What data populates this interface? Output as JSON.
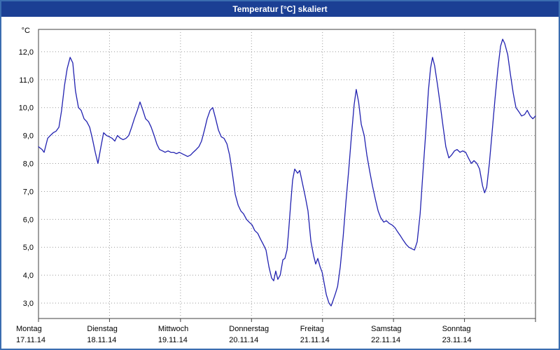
{
  "window": {
    "title": "Temperatur [°C] skaliert"
  },
  "chart_data": {
    "type": "line",
    "title": "Temperatur [°C] skaliert",
    "xlabel": "",
    "ylabel": "°C",
    "ylim": [
      2.45,
      12.8
    ],
    "xlim_hours": [
      0,
      168
    ],
    "grid": true,
    "legend": "none",
    "colors": {
      "line": "#2121b0",
      "grid": "#9a9a9a",
      "axis": "#404040",
      "title_bar": "#1b3f94",
      "title_text": "#ffffff",
      "label_text": "#000000",
      "plot_background": "#ffffff",
      "window_border": "#3a6db0"
    },
    "y_axis": {
      "unit": "°C",
      "ticks": [
        {
          "value": 12,
          "label": "12,0"
        },
        {
          "value": 11,
          "label": "11,0"
        },
        {
          "value": 10,
          "label": "10,0"
        },
        {
          "value": 9,
          "label": "9,0"
        },
        {
          "value": 8,
          "label": "8,0"
        },
        {
          "value": 7,
          "label": "7,0"
        },
        {
          "value": 6,
          "label": "6,0"
        },
        {
          "value": 5,
          "label": "5,0"
        },
        {
          "value": 4,
          "label": "4,0"
        },
        {
          "value": 3,
          "label": "3,0"
        }
      ]
    },
    "x_axis": {
      "days": [
        {
          "weekday": "Montag",
          "date": "17.11.14"
        },
        {
          "weekday": "Dienstag",
          "date": "18.11.14"
        },
        {
          "weekday": "Mittwoch",
          "date": "19.11.14"
        },
        {
          "weekday": "Donnerstag",
          "date": "20.11.14"
        },
        {
          "weekday": "Freitag",
          "date": "21.11.14"
        },
        {
          "weekday": "Samstag",
          "date": "22.11.14"
        },
        {
          "weekday": "Sonntag",
          "date": "23.11.14"
        }
      ],
      "hours_per_day": 24
    },
    "series": [
      {
        "name": "Temperatur",
        "points": [
          [
            0,
            8.6
          ],
          [
            1.2,
            8.5
          ],
          [
            1.9,
            8.4
          ],
          [
            3.1,
            8.9
          ],
          [
            4,
            9.0
          ],
          [
            5,
            9.1
          ],
          [
            5.9,
            9.15
          ],
          [
            6.9,
            9.3
          ],
          [
            7.8,
            9.9
          ],
          [
            8.8,
            10.8
          ],
          [
            9.7,
            11.4
          ],
          [
            10.7,
            11.8
          ],
          [
            11.6,
            11.6
          ],
          [
            12.5,
            10.6
          ],
          [
            13.5,
            10.0
          ],
          [
            14.4,
            9.9
          ],
          [
            15.4,
            9.6
          ],
          [
            16.3,
            9.5
          ],
          [
            17.3,
            9.3
          ],
          [
            18.2,
            8.9
          ],
          [
            19.2,
            8.4
          ],
          [
            20.1,
            8.0
          ],
          [
            21.1,
            8.6
          ],
          [
            22,
            9.1
          ],
          [
            23,
            9.0
          ],
          [
            24,
            8.95
          ],
          [
            24.9,
            8.9
          ],
          [
            25.8,
            8.8
          ],
          [
            26.7,
            9.0
          ],
          [
            27.7,
            8.9
          ],
          [
            28.6,
            8.85
          ],
          [
            29.6,
            8.9
          ],
          [
            30.5,
            9.0
          ],
          [
            31.5,
            9.3
          ],
          [
            32.4,
            9.6
          ],
          [
            33.4,
            9.9
          ],
          [
            34.3,
            10.2
          ],
          [
            35.3,
            9.9
          ],
          [
            36.2,
            9.6
          ],
          [
            37.2,
            9.5
          ],
          [
            38.1,
            9.3
          ],
          [
            39.1,
            9.0
          ],
          [
            40,
            8.7
          ],
          [
            40.9,
            8.5
          ],
          [
            41.9,
            8.45
          ],
          [
            42.8,
            8.4
          ],
          [
            43.8,
            8.45
          ],
          [
            44.7,
            8.4
          ],
          [
            45.7,
            8.4
          ],
          [
            46.6,
            8.35
          ],
          [
            47.6,
            8.4
          ],
          [
            48.5,
            8.35
          ],
          [
            49.5,
            8.3
          ],
          [
            50.4,
            8.25
          ],
          [
            51.4,
            8.3
          ],
          [
            52.3,
            8.4
          ],
          [
            53.3,
            8.5
          ],
          [
            54.2,
            8.6
          ],
          [
            55.1,
            8.8
          ],
          [
            56.1,
            9.2
          ],
          [
            57,
            9.6
          ],
          [
            58,
            9.9
          ],
          [
            58.9,
            10.0
          ],
          [
            59.9,
            9.6
          ],
          [
            60.8,
            9.2
          ],
          [
            61.8,
            8.95
          ],
          [
            62.7,
            8.9
          ],
          [
            63.7,
            8.7
          ],
          [
            64.6,
            8.3
          ],
          [
            65.6,
            7.6
          ],
          [
            66.5,
            6.9
          ],
          [
            67.5,
            6.5
          ],
          [
            68.4,
            6.3
          ],
          [
            69.3,
            6.2
          ],
          [
            70.3,
            6.0
          ],
          [
            71.2,
            5.9
          ],
          [
            72.2,
            5.8
          ],
          [
            73.1,
            5.6
          ],
          [
            74.1,
            5.5
          ],
          [
            75,
            5.3
          ],
          [
            76,
            5.1
          ],
          [
            76.9,
            4.9
          ],
          [
            77.9,
            4.3
          ],
          [
            78.8,
            3.9
          ],
          [
            79.5,
            3.8
          ],
          [
            80.2,
            4.15
          ],
          [
            80.9,
            3.85
          ],
          [
            81.7,
            4.0
          ],
          [
            82.6,
            4.55
          ],
          [
            83.3,
            4.6
          ],
          [
            84,
            4.9
          ],
          [
            84.5,
            5.5
          ],
          [
            85.2,
            6.5
          ],
          [
            85.9,
            7.4
          ],
          [
            86.6,
            7.8
          ],
          [
            87.6,
            7.65
          ],
          [
            88.3,
            7.75
          ],
          [
            89.2,
            7.3
          ],
          [
            90.2,
            6.8
          ],
          [
            91.1,
            6.3
          ],
          [
            92.1,
            5.2
          ],
          [
            93,
            4.7
          ],
          [
            93.7,
            4.4
          ],
          [
            94.4,
            4.6
          ],
          [
            95.2,
            4.3
          ],
          [
            95.9,
            4.1
          ],
          [
            96.6,
            3.7
          ],
          [
            97.3,
            3.3
          ],
          [
            98.2,
            3.0
          ],
          [
            98.9,
            2.9
          ],
          [
            99.6,
            3.1
          ],
          [
            100.4,
            3.35
          ],
          [
            101.1,
            3.6
          ],
          [
            102,
            4.3
          ],
          [
            103,
            5.4
          ],
          [
            103.9,
            6.6
          ],
          [
            104.9,
            7.8
          ],
          [
            105.8,
            9.0
          ],
          [
            106.7,
            10.1
          ],
          [
            107.4,
            10.65
          ],
          [
            108.2,
            10.2
          ],
          [
            109.1,
            9.4
          ],
          [
            110.1,
            9.0
          ],
          [
            111,
            8.3
          ],
          [
            112,
            7.7
          ],
          [
            112.9,
            7.2
          ],
          [
            113.9,
            6.7
          ],
          [
            114.8,
            6.3
          ],
          [
            115.7,
            6.05
          ],
          [
            116.7,
            5.9
          ],
          [
            117.6,
            5.95
          ],
          [
            118.6,
            5.85
          ],
          [
            119.5,
            5.8
          ],
          [
            120.5,
            5.7
          ],
          [
            121.4,
            5.55
          ],
          [
            122.4,
            5.4
          ],
          [
            123.3,
            5.25
          ],
          [
            124.3,
            5.1
          ],
          [
            125.2,
            5.0
          ],
          [
            126.1,
            4.95
          ],
          [
            127.1,
            4.9
          ],
          [
            128,
            5.2
          ],
          [
            129,
            6.2
          ],
          [
            129.9,
            7.6
          ],
          [
            130.9,
            9.1
          ],
          [
            131.8,
            10.6
          ],
          [
            132.5,
            11.4
          ],
          [
            133.2,
            11.8
          ],
          [
            133.9,
            11.5
          ],
          [
            134.9,
            10.8
          ],
          [
            135.8,
            10.1
          ],
          [
            136.8,
            9.3
          ],
          [
            137.7,
            8.6
          ],
          [
            138.7,
            8.2
          ],
          [
            139.6,
            8.3
          ],
          [
            140.6,
            8.45
          ],
          [
            141.5,
            8.5
          ],
          [
            142.5,
            8.4
          ],
          [
            143.4,
            8.45
          ],
          [
            144.4,
            8.4
          ],
          [
            145.3,
            8.2
          ],
          [
            146.3,
            8.0
          ],
          [
            147.2,
            8.1
          ],
          [
            148.2,
            8.0
          ],
          [
            149.1,
            7.8
          ],
          [
            150.1,
            7.2
          ],
          [
            150.8,
            6.95
          ],
          [
            151.5,
            7.15
          ],
          [
            152.4,
            8.0
          ],
          [
            153.4,
            9.2
          ],
          [
            154.3,
            10.3
          ],
          [
            155.3,
            11.4
          ],
          [
            156.2,
            12.2
          ],
          [
            156.9,
            12.45
          ],
          [
            157.6,
            12.3
          ],
          [
            158.6,
            11.9
          ],
          [
            159.5,
            11.2
          ],
          [
            160.5,
            10.5
          ],
          [
            161.4,
            10.0
          ],
          [
            162.4,
            9.85
          ],
          [
            163.3,
            9.7
          ],
          [
            164.3,
            9.75
          ],
          [
            165.2,
            9.9
          ],
          [
            166.2,
            9.7
          ],
          [
            167.1,
            9.6
          ],
          [
            168,
            9.7
          ]
        ]
      }
    ]
  }
}
